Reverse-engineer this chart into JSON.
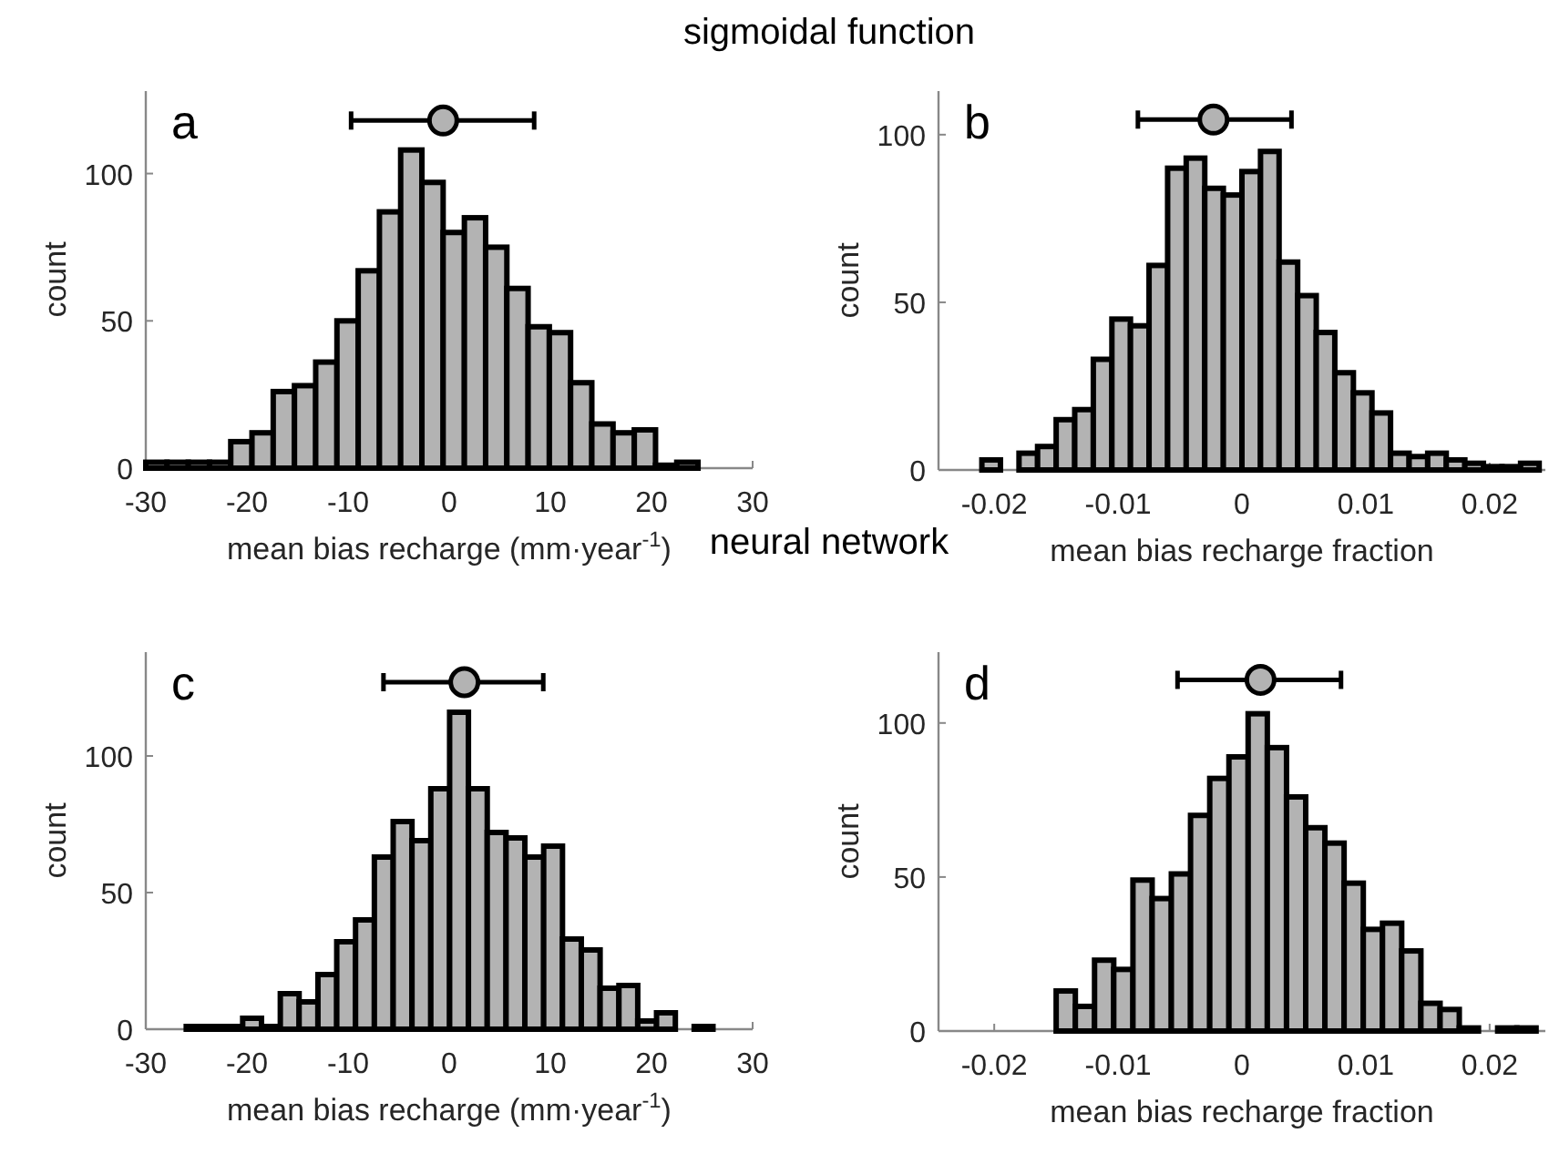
{
  "chart_data": [
    {
      "type": "histogram",
      "title": "sigmoidal function",
      "annotations": [
        "a"
      ],
      "xlabel": "mean bias recharge (mm·year$^{-1}$)",
      "ylabel": "count",
      "xlim": [
        -30,
        30
      ],
      "xticks": [
        -30,
        -20,
        -10,
        0,
        10,
        20,
        30
      ],
      "ylim": [
        0,
        128
      ],
      "yticks": [
        0,
        50,
        100
      ],
      "series": [
        {
          "type": "histogram",
          "color": "#b3b3b3",
          "bins": [
            -30,
            -27.9,
            -25.8,
            -23.7,
            -21.6,
            -19.5,
            -17.4,
            -15.3,
            -13.2,
            -11.1,
            -9,
            -6.9,
            -4.8,
            -2.7,
            -0.6,
            1.5,
            3.6,
            5.7,
            7.8,
            9.9,
            12,
            14.1,
            16.2,
            18.3,
            20.4,
            22.5,
            24.6,
            26.7
          ],
          "values": [
            2,
            2,
            2,
            2,
            9,
            12,
            26,
            28,
            36,
            50,
            67,
            87,
            108,
            97,
            80,
            85,
            75,
            61,
            48,
            46,
            29,
            15,
            12,
            13,
            1,
            2,
            0
          ]
        },
        {
          "type": "scatter",
          "color": "#b3b3b3",
          "marker": "circle",
          "x": [
            -0.6
          ],
          "values": [
            118
          ],
          "xerrors": [
            [
              -9.7,
              8.4
            ]
          ]
        }
      ]
    },
    {
      "type": "histogram",
      "annotations": [
        "b"
      ],
      "xlabel": "mean bias recharge fraction",
      "ylabel": "count",
      "xlim": [
        -0.0245,
        0.0245
      ],
      "xticks": [
        -0.02,
        -0.01,
        0,
        0.01,
        0.02
      ],
      "ylim": [
        0,
        113
      ],
      "yticks": [
        0,
        50,
        100
      ],
      "series": [
        {
          "type": "histogram",
          "color": "#b3b3b3",
          "bins": [
            -0.021,
            -0.0195,
            -0.018,
            -0.0165,
            -0.015,
            -0.0135,
            -0.012,
            -0.0105,
            -0.009,
            -0.0075,
            -0.006,
            -0.0045,
            -0.003,
            -0.0015,
            0,
            0.0015,
            0.003,
            0.0045,
            0.006,
            0.0075,
            0.009,
            0.0105,
            0.012,
            0.0135,
            0.015,
            0.0165,
            0.018,
            0.0195,
            0.021,
            0.0225,
            0.024
          ],
          "values": [
            3,
            0,
            5,
            7,
            15,
            18,
            33,
            45,
            43,
            61,
            90,
            93,
            84,
            82,
            89,
            95,
            62,
            52,
            41,
            29,
            23,
            17,
            5,
            4,
            5,
            3,
            2,
            1,
            1,
            2
          ]
        },
        {
          "type": "scatter",
          "color": "#b3b3b3",
          "marker": "circle",
          "x": [
            -0.0023
          ],
          "values": [
            104.5
          ],
          "xerrors": [
            [
              -0.0084,
              0.004
            ]
          ]
        }
      ]
    },
    {
      "type": "histogram",
      "title": "neural network",
      "annotations": [
        "c"
      ],
      "xlabel": "mean bias recharge (mm·year$^{-1}$)",
      "ylabel": "count",
      "xlim": [
        -30,
        30
      ],
      "xticks": [
        -30,
        -20,
        -10,
        0,
        10,
        20,
        30
      ],
      "ylim": [
        0,
        138
      ],
      "yticks": [
        0,
        50,
        100
      ],
      "series": [
        {
          "type": "histogram",
          "color": "#b3b3b3",
          "bins": [
            -26,
            -24.14,
            -22.28,
            -20.42,
            -18.56,
            -16.7,
            -14.84,
            -12.98,
            -11.12,
            -9.26,
            -7.4,
            -5.54,
            -3.68,
            -1.82,
            0.04,
            1.9,
            3.76,
            5.62,
            7.48,
            9.34,
            11.2,
            13.06,
            14.92,
            16.78,
            18.64,
            20.5,
            22.36,
            24.22,
            26.08
          ],
          "values": [
            1,
            1,
            1,
            4,
            1,
            13,
            10,
            20,
            32,
            40,
            63,
            76,
            69,
            88,
            116,
            88,
            72,
            70,
            63,
            67,
            33,
            29,
            15,
            16,
            3,
            6,
            0,
            1
          ]
        },
        {
          "type": "scatter",
          "color": "#b3b3b3",
          "marker": "circle",
          "x": [
            1.5
          ],
          "values": [
            127
          ],
          "xerrors": [
            [
              -6.5,
              9.3
            ]
          ]
        }
      ]
    },
    {
      "type": "histogram",
      "annotations": [
        "d"
      ],
      "xlabel": "mean bias recharge fraction",
      "ylabel": "count",
      "xlim": [
        -0.0245,
        0.0245
      ],
      "xticks": [
        -0.02,
        -0.01,
        0,
        0.01,
        0.02
      ],
      "ylim": [
        0,
        123
      ],
      "yticks": [
        0,
        50,
        100
      ],
      "series": [
        {
          "type": "histogram",
          "color": "#b3b3b3",
          "bins": [
            -0.015,
            -0.01345,
            -0.0119,
            -0.01035,
            -0.0088,
            -0.00725,
            -0.0057,
            -0.00415,
            -0.0026,
            -0.00105,
            0.0005,
            0.00205,
            0.0036,
            0.00515,
            0.0067,
            0.00825,
            0.0098,
            0.01135,
            0.0129,
            0.01445,
            0.016,
            0.01755,
            0.0191,
            0.02065,
            0.0222,
            0.02375
          ],
          "values": [
            13,
            8,
            23,
            20,
            49,
            43,
            51,
            70,
            82,
            89,
            103,
            92,
            76,
            66,
            61,
            48,
            33,
            35,
            26,
            9,
            7,
            1,
            0,
            1,
            1
          ]
        },
        {
          "type": "scatter",
          "color": "#b3b3b3",
          "marker": "circle",
          "x": [
            0.0015
          ],
          "values": [
            114
          ],
          "xerrors": [
            [
              -0.0052,
              0.008
            ]
          ]
        }
      ]
    }
  ]
}
